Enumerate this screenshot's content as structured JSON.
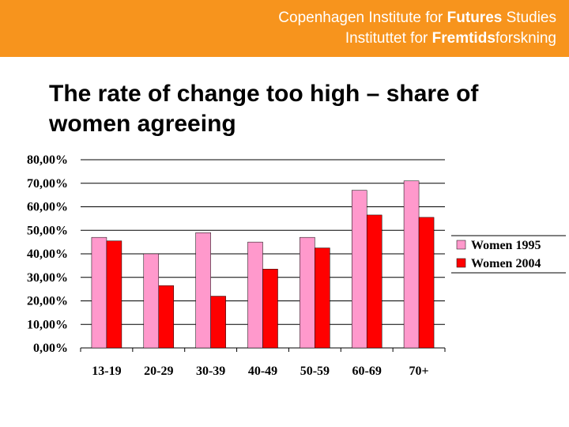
{
  "header": {
    "brand_line1_prefix": "Copenhagen Institute for ",
    "brand_line1_bold": "Futures",
    "brand_line1_suffix": " Studies",
    "brand_line2_prefix": "Instituttet for ",
    "brand_line2_bold": "Fremtids",
    "brand_line2_suffix": "forskning"
  },
  "slide": {
    "title": "The rate of change too high – share of women agreeing"
  },
  "colors": {
    "header_bg": "#f7941d",
    "women_1995": "#ff99cc",
    "women_2004": "#ff0000"
  },
  "chart_data": {
    "type": "bar",
    "categories": [
      "13-19",
      "20-29",
      "30-39",
      "40-49",
      "50-59",
      "60-69",
      "70+"
    ],
    "series": [
      {
        "name": "Women 1995",
        "color": "#ff99cc",
        "values": [
          47,
          40,
          49,
          45,
          47,
          67,
          71
        ]
      },
      {
        "name": "Women 2004",
        "color": "#ff0000",
        "values": [
          45.5,
          26.5,
          22,
          33.5,
          42.5,
          56.5,
          55.5
        ]
      }
    ],
    "ylim": [
      0,
      80
    ],
    "yticks": [
      "0,00%",
      "10,00%",
      "20,00%",
      "30,00%",
      "40,00%",
      "50,00%",
      "60,00%",
      "70,00%",
      "80,00%"
    ],
    "grid": true,
    "legend": "right"
  }
}
